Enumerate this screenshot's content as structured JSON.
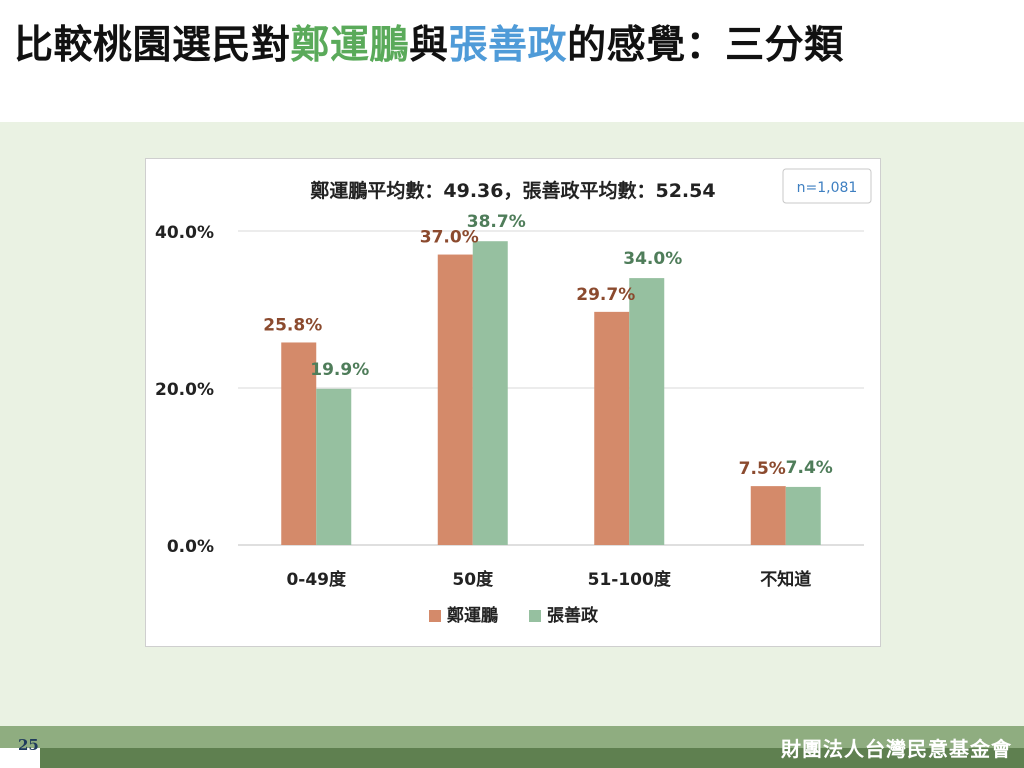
{
  "title": {
    "part1": "比較桃園選民對",
    "name_a": "鄭運鵬",
    "part2": "與",
    "name_b": "張善政",
    "part3": "的感覺：三分類"
  },
  "colors": {
    "series_a": "#d48a6a",
    "series_b": "#96c0a0",
    "label_a": "#8b4a2e",
    "label_b": "#4f7d5a",
    "title_green": "#5aaa5a",
    "title_blue": "#4f9bd8",
    "panel_bg": "#eaf2e3"
  },
  "footer": {
    "page_number": "25",
    "organization": "財團法人台灣民意基金會"
  },
  "chart_data": {
    "type": "bar",
    "title": "鄭運鵬平均數：49.36，張善政平均數：52.54",
    "sample_note": "n=1,081",
    "categories": [
      "0-49度",
      "50度",
      "51-100度",
      "不知道"
    ],
    "series": [
      {
        "name": "鄭運鵬",
        "values": [
          25.8,
          37.0,
          29.7,
          7.5
        ],
        "labels": [
          "25.8%",
          "37.0%",
          "29.7%",
          "7.5%"
        ]
      },
      {
        "name": "張善政",
        "values": [
          19.9,
          38.7,
          34.0,
          7.4
        ],
        "labels": [
          "19.9%",
          "38.7%",
          "34.0%",
          "7.4%"
        ]
      }
    ],
    "yticks": [
      0,
      20,
      40
    ],
    "ytick_labels": [
      "0.0%",
      "20.0%",
      "40.0%"
    ],
    "ylim": [
      0,
      40
    ],
    "grid": true,
    "legend_position": "bottom"
  }
}
